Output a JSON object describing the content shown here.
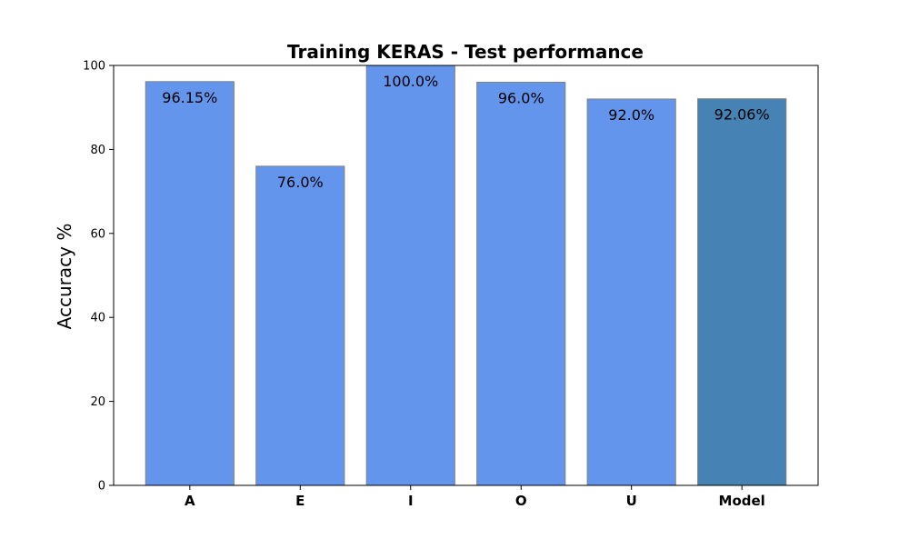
{
  "chart_data": {
    "type": "bar",
    "title": "Training KERAS - Test performance",
    "xlabel": "",
    "ylabel": "Accuracy %",
    "categories": [
      "A",
      "E",
      "I",
      "O",
      "U",
      "Model"
    ],
    "values": [
      96.15,
      76.0,
      100.0,
      96.0,
      92.0,
      92.06
    ],
    "value_labels": [
      "96.15%",
      "76.0%",
      "100.0%",
      "96.0%",
      "92.0%",
      "92.06%"
    ],
    "ylim": [
      0,
      100
    ],
    "yticks": [
      0,
      20,
      40,
      60,
      80,
      100
    ],
    "grid": false,
    "legend": "none",
    "colors": {
      "bar": "#6495ED",
      "highlight_bar": "#4682B4",
      "bar_edge": "#808080",
      "axis": "#000000"
    },
    "highlight_category": "Model"
  }
}
